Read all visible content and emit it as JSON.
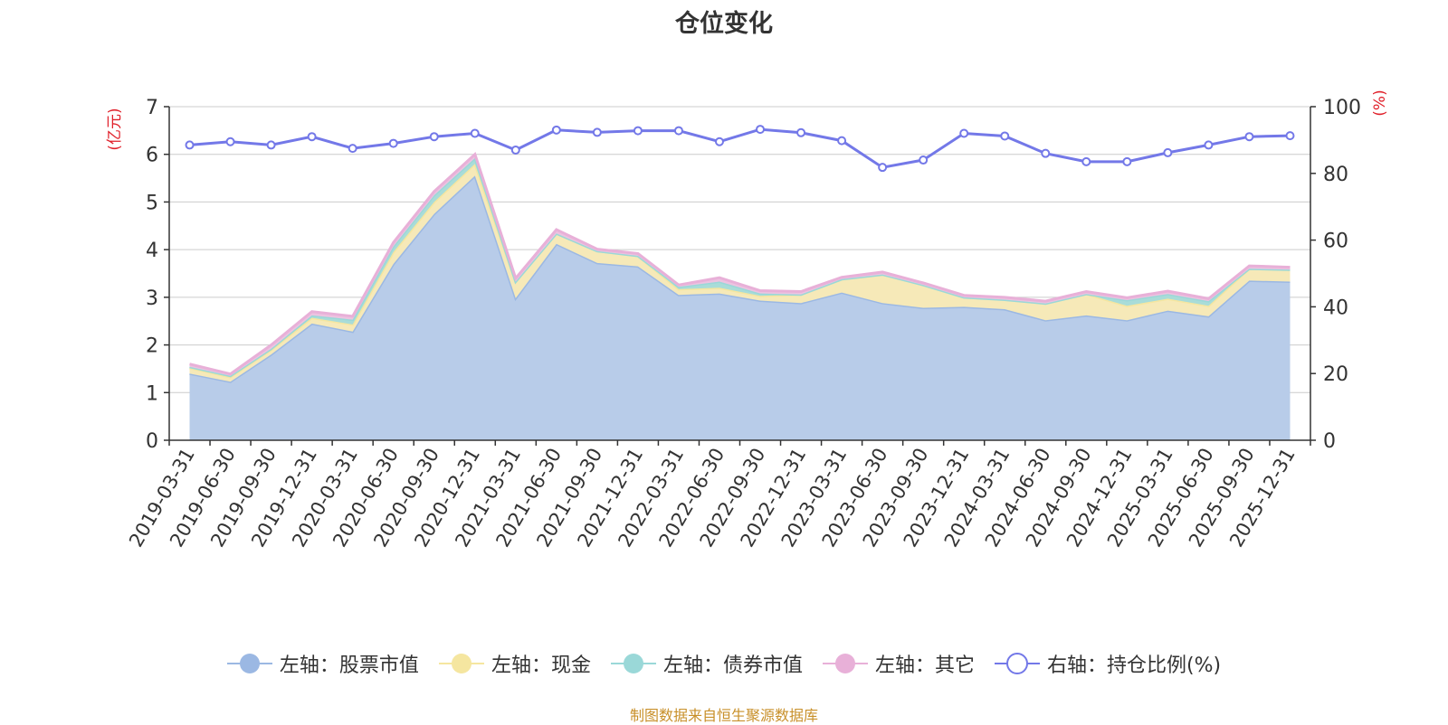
{
  "title": "仓位变化",
  "source": "制图数据来自恒生聚源数据库",
  "chart_data": {
    "type": "area",
    "title": "仓位变化",
    "left_axis": {
      "unit_label": "(亿元)",
      "ylim": [
        0,
        7
      ],
      "ticks": [
        0,
        1,
        2,
        3,
        4,
        5,
        6,
        7
      ],
      "color": "#e0202a"
    },
    "right_axis": {
      "unit_label": "(%)",
      "ylim": [
        0,
        100
      ],
      "ticks": [
        0,
        20,
        40,
        60,
        80,
        100
      ],
      "color": "#e0202a"
    },
    "grid": true,
    "legend_position": "bottom",
    "categories": [
      "2019-03-31",
      "2019-06-30",
      "2019-09-30",
      "2019-12-31",
      "2020-03-31",
      "2020-06-30",
      "2020-09-30",
      "2020-12-31",
      "2021-03-31",
      "2021-06-30",
      "2021-09-30",
      "2021-12-31",
      "2022-03-31",
      "2022-06-30",
      "2022-09-30",
      "2022-12-31",
      "2023-03-31",
      "2023-06-30",
      "2023-09-30",
      "2023-12-31",
      "2024-03-31",
      "2024-06-30",
      "2024-09-30",
      "2024-12-31",
      "2025-03-31",
      "2025-06-30",
      "2025-09-30",
      "2025-12-31"
    ],
    "series": [
      {
        "name": "左轴：股票市值",
        "axis": "left",
        "kind": "stacked-area",
        "color": "#9bb8e3",
        "fill": "#b8cce9",
        "values": [
          1.4,
          1.23,
          1.8,
          2.45,
          2.28,
          3.7,
          4.75,
          5.55,
          2.98,
          4.12,
          3.72,
          3.65,
          3.05,
          3.08,
          2.93,
          2.88,
          3.1,
          2.88,
          2.78,
          2.8,
          2.75,
          2.52,
          2.62,
          2.52,
          2.72,
          2.6,
          3.35,
          3.33
        ]
      },
      {
        "name": "左轴：现金",
        "axis": "left",
        "kind": "stacked-area",
        "color": "#f5e6a0",
        "fill": "#f6e9b8",
        "values": [
          0.12,
          0.1,
          0.1,
          0.12,
          0.15,
          0.25,
          0.25,
          0.25,
          0.35,
          0.22,
          0.25,
          0.22,
          0.12,
          0.12,
          0.1,
          0.18,
          0.28,
          0.6,
          0.48,
          0.2,
          0.2,
          0.35,
          0.45,
          0.3,
          0.25,
          0.22,
          0.25,
          0.25
        ]
      },
      {
        "name": "左轴：债券市值",
        "axis": "left",
        "kind": "stacked-area",
        "color": "#9ad8d8",
        "fill": "#a9dcd8",
        "values": [
          0.02,
          0.02,
          0.02,
          0.05,
          0.1,
          0.12,
          0.14,
          0.12,
          0.0,
          0.0,
          0.0,
          0.0,
          0.05,
          0.13,
          0.05,
          0.0,
          0.0,
          0.0,
          0.0,
          0.0,
          0.0,
          0.0,
          0.0,
          0.12,
          0.1,
          0.1,
          0.0,
          0.0
        ]
      },
      {
        "name": "左轴：其它",
        "axis": "left",
        "kind": "stacked-area",
        "color": "#e8b0d8",
        "fill": "#ecc3e0",
        "values": [
          0.06,
          0.04,
          0.08,
          0.08,
          0.07,
          0.08,
          0.08,
          0.08,
          0.07,
          0.08,
          0.04,
          0.05,
          0.04,
          0.08,
          0.06,
          0.06,
          0.04,
          0.05,
          0.04,
          0.04,
          0.05,
          0.05,
          0.05,
          0.05,
          0.06,
          0.05,
          0.06,
          0.05
        ]
      },
      {
        "name": "右轴：持仓比例(%)",
        "axis": "right",
        "kind": "line",
        "color": "#7378e8",
        "values": [
          88.5,
          89.5,
          88.5,
          91,
          87.5,
          89,
          91,
          92,
          87,
          93,
          92.3,
          92.8,
          92.8,
          89.5,
          93.2,
          92.2,
          89.8,
          81.8,
          84,
          92,
          91.2,
          86,
          83.5,
          83.5,
          86.2,
          88.5,
          91,
          91.3
        ]
      }
    ]
  }
}
